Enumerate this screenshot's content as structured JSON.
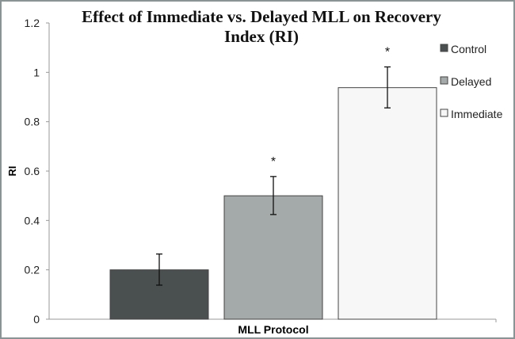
{
  "chart_data": {
    "type": "bar",
    "title": "Effect of Immediate vs. Delayed MLL on Recovery Index (RI)",
    "title_lines": [
      "Effect of Immediate vs. Delayed MLL on Recovery",
      "Index (RI)"
    ],
    "xlabel": "MLL Protocol",
    "ylabel": "RI",
    "ylim": [
      0,
      1.2
    ],
    "yticks": [
      "0",
      "0.2",
      "0.4",
      "0.6",
      "0.8",
      "1",
      "1.2"
    ],
    "grid": false,
    "legend_position": "right",
    "series": [
      {
        "name": "Control",
        "value": 0.2,
        "error_low": 0.138,
        "error_high": 0.264,
        "significance": "",
        "color": "#4a5050"
      },
      {
        "name": "Delayed",
        "value": 0.5,
        "error_low": 0.424,
        "error_high": 0.578,
        "significance": "*",
        "color": "#a3aaa9"
      },
      {
        "name": "Immediate",
        "value": 0.938,
        "error_low": 0.856,
        "error_high": 1.022,
        "significance": "*",
        "color": "#f7f7f7"
      }
    ]
  }
}
